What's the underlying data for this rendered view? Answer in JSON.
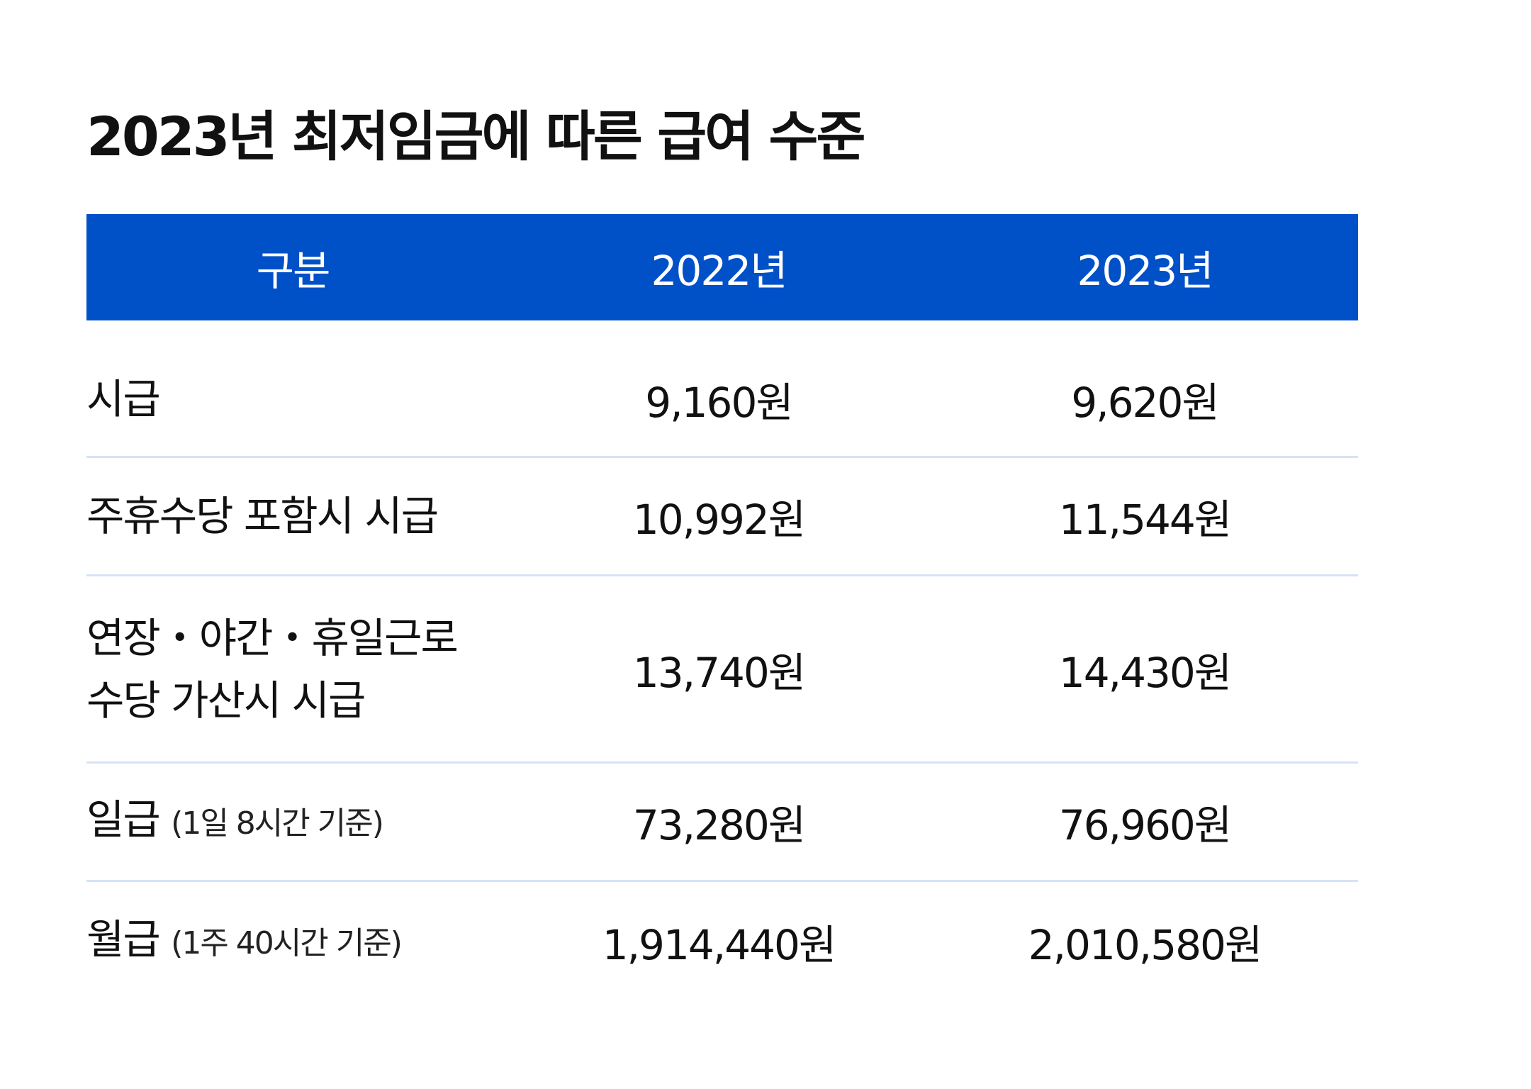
{
  "title": "2023년 최저임금에 따른 급여 수준",
  "table": {
    "headers": [
      "구분",
      "2022년",
      "2023년"
    ],
    "rows": [
      {
        "label": "시급",
        "note": "",
        "y2022": "9,160원",
        "y2023": "9,620원"
      },
      {
        "label": "주휴수당 포함시 시급",
        "note": "",
        "y2022": "10,992원",
        "y2023": "11,544원"
      },
      {
        "label_line1": "연장・야간・휴일근로",
        "label_line2": "수당 가산시 시급",
        "y2022": "13,740원",
        "y2023": "14,430원"
      },
      {
        "label": "일급",
        "note": "(1일 8시간 기준)",
        "y2022": "73,280원",
        "y2023": "76,960원"
      },
      {
        "label": "월급",
        "note": "(1주 40시간 기준)",
        "y2022": "1,914,440원",
        "y2023": "2,010,580원"
      }
    ]
  },
  "colors": {
    "header_bg": "#0050c8",
    "header_text": "#ffffff",
    "row_divider": "#d6e3f6",
    "body_text": "#111111"
  }
}
